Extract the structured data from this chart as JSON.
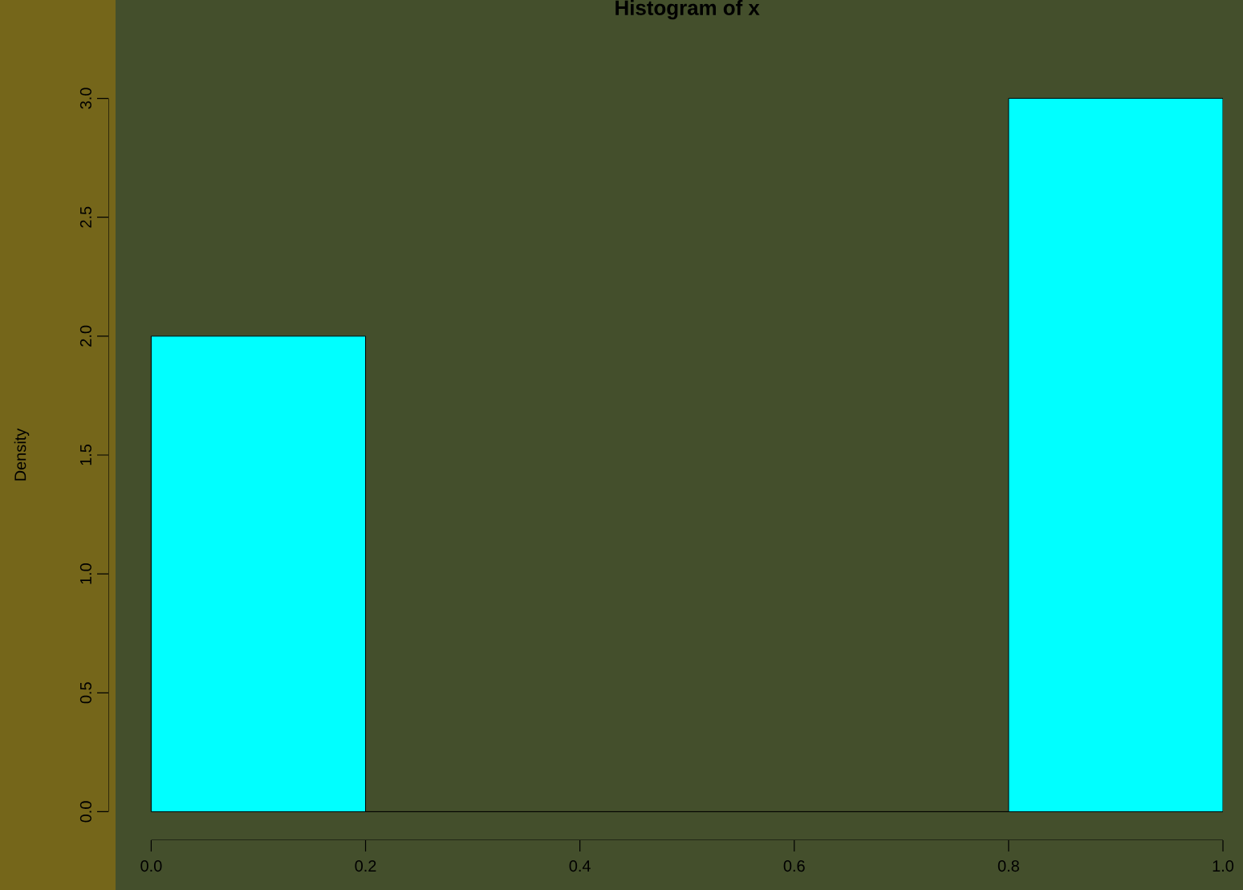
{
  "chart_data": {
    "type": "histogram",
    "title": "Histogram of x",
    "ylabel": "Density",
    "bins": [
      0,
      0.2,
      0.4,
      0.6,
      0.8,
      1.0
    ],
    "values": [
      2,
      0,
      0,
      0,
      3
    ],
    "color": "#00ffff",
    "xlim": [
      0,
      1
    ],
    "ylim": [
      0,
      3
    ],
    "xticks": [
      {
        "value": 0,
        "label": "0.0"
      },
      0.2,
      0.4,
      0.6,
      0.8,
      {
        "value": 1,
        "label": "1.0"
      }
    ],
    "yticks": [
      {
        "value": 0,
        "label": "0.0"
      },
      0.5,
      {
        "value": 1,
        "label": "1.0"
      },
      1.5,
      {
        "value": 2,
        "label": "2.0"
      },
      2.5,
      {
        "value": 3,
        "label": "3.0"
      }
    ]
  }
}
